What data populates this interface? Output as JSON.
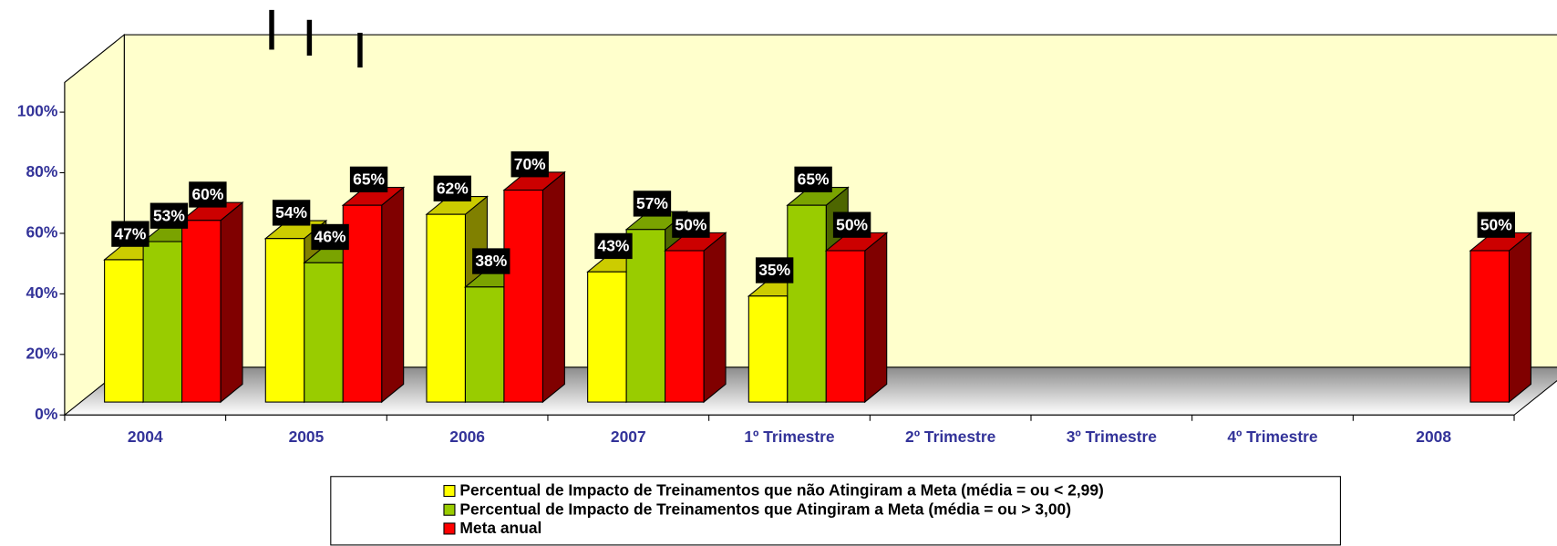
{
  "chart_data": {
    "type": "bar3d",
    "categories": [
      "2004",
      "2005",
      "2006",
      "2007",
      "1º Trimestre",
      "2º Trimestre",
      "3º Trimestre",
      "4º Trimestre",
      "2008"
    ],
    "series": [
      {
        "name": "Percentual de Impacto de Treinamentos que não Atingiram a Meta (média = ou < 2,99)",
        "color": "#ffff00",
        "values": [
          47,
          54,
          62,
          43,
          35,
          null,
          null,
          null,
          null
        ],
        "value_labels": [
          "47%",
          "54%",
          "62%",
          "43%",
          "35%",
          null,
          null,
          null,
          null
        ]
      },
      {
        "name": "Percentual de Impacto de Treinamentos que Atingiram a Meta (média = ou > 3,00)",
        "color": "#99cc00",
        "values": [
          53,
          46,
          38,
          57,
          65,
          null,
          null,
          null,
          null
        ],
        "value_labels": [
          "53%",
          "46%",
          "38%",
          "57%",
          "65%",
          null,
          null,
          null,
          null
        ]
      },
      {
        "name": "Meta anual",
        "color": "#ff0000",
        "values": [
          60,
          65,
          70,
          50,
          50,
          null,
          null,
          null,
          50
        ],
        "value_labels": [
          "60%",
          "65%",
          "70%",
          "50%",
          "50%",
          null,
          null,
          null,
          "50%"
        ]
      }
    ],
    "ylim": [
      0,
      100
    ],
    "yticks": [
      {
        "value": 0,
        "label": "0%"
      },
      {
        "value": 20,
        "label": "20%"
      },
      {
        "value": 40,
        "label": "40%"
      },
      {
        "value": 60,
        "label": "60%"
      },
      {
        "value": 80,
        "label": "80%"
      },
      {
        "value": 100,
        "label": "100%"
      }
    ],
    "legend": "bottom"
  }
}
